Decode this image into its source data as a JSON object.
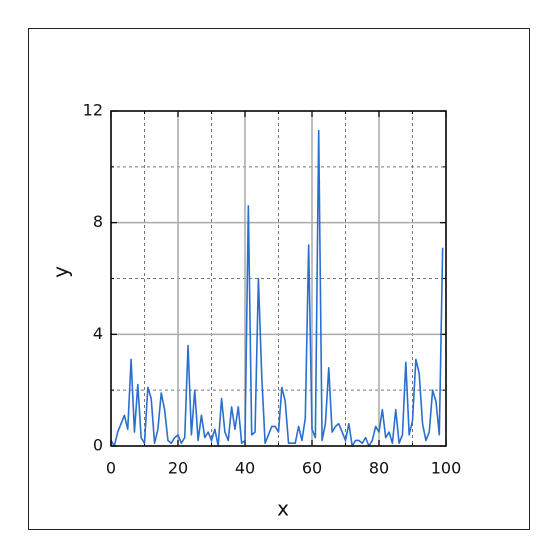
{
  "chart_data": {
    "type": "line",
    "xlabel": "x",
    "ylabel": "y",
    "x": [
      0,
      1,
      2,
      3,
      4,
      5,
      6,
      7,
      8,
      9,
      10,
      11,
      12,
      13,
      14,
      15,
      16,
      17,
      18,
      19,
      20,
      21,
      22,
      23,
      24,
      25,
      26,
      27,
      28,
      29,
      30,
      31,
      32,
      33,
      34,
      35,
      36,
      37,
      38,
      39,
      40,
      41,
      42,
      43,
      44,
      45,
      46,
      47,
      48,
      49,
      50,
      51,
      52,
      53,
      54,
      55,
      56,
      57,
      58,
      59,
      60,
      61,
      62,
      63,
      64,
      65,
      66,
      67,
      68,
      69,
      70,
      71,
      72,
      73,
      74,
      75,
      76,
      77,
      78,
      79,
      80,
      81,
      82,
      83,
      84,
      85,
      86,
      87,
      88,
      89,
      90,
      91,
      92,
      93,
      94,
      95,
      96,
      97,
      98,
      99
    ],
    "series": [
      {
        "color": "#2a6fcf",
        "values": [
          0.2,
          0.0,
          0.5,
          0.8,
          1.1,
          0.6,
          3.1,
          0.5,
          2.2,
          0.3,
          0.1,
          2.1,
          1.7,
          0.1,
          0.6,
          1.9,
          1.3,
          0.2,
          0.1,
          0.3,
          0.4,
          0.1,
          0.3,
          3.6,
          0.4,
          2.0,
          0.2,
          1.1,
          0.3,
          0.5,
          0.2,
          0.6,
          0.0,
          1.7,
          0.5,
          0.2,
          1.4,
          0.6,
          1.4,
          0.1,
          0.2,
          8.6,
          0.4,
          0.5,
          6.0,
          2.5,
          0.1,
          0.4,
          0.7,
          0.7,
          0.5,
          2.1,
          1.6,
          0.1,
          0.1,
          0.1,
          0.7,
          0.2,
          1.0,
          7.2,
          0.6,
          0.3,
          11.3,
          0.2,
          0.8,
          2.8,
          0.5,
          0.7,
          0.8,
          0.5,
          0.2,
          0.8,
          0.0,
          0.2,
          0.2,
          0.1,
          0.3,
          0.0,
          0.2,
          0.7,
          0.5,
          1.3,
          0.3,
          0.5,
          0.1,
          1.3,
          0.1,
          0.4,
          3.0,
          0.4,
          0.9,
          3.1,
          2.6,
          0.8,
          0.2,
          0.5,
          2.0,
          1.6,
          0.4,
          7.1
        ]
      }
    ],
    "xlim": [
      0,
      100
    ],
    "xticks": [
      0,
      20,
      40,
      60,
      80,
      100
    ],
    "xminorticks": [
      10,
      30,
      50,
      70,
      90
    ],
    "ylim": [
      0,
      12
    ],
    "yticks": [
      0,
      4,
      8,
      12
    ],
    "yminorticks": [
      2,
      6,
      10
    ],
    "grid": true
  }
}
